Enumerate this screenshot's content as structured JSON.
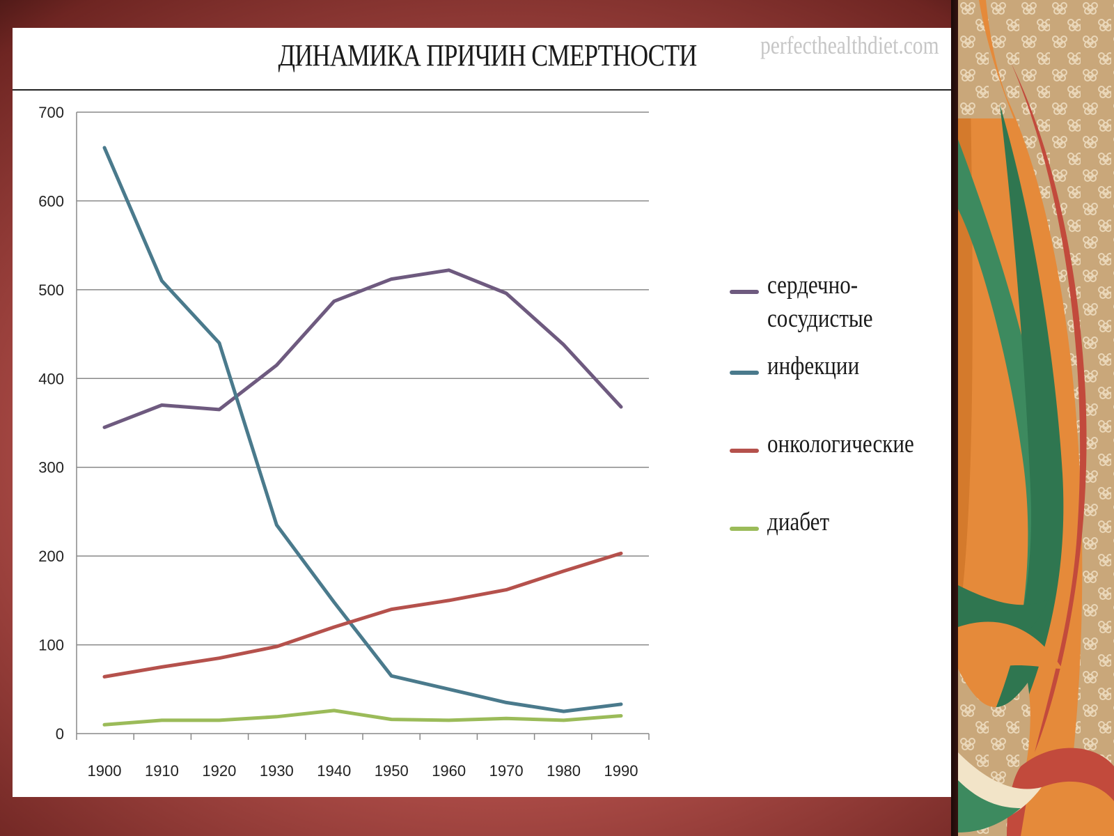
{
  "slide": {
    "title": "ДИНАМИКА ПРИЧИН СМЕРТНОСТИ",
    "watermark": "perfecthealthdiet.com"
  },
  "colors": {
    "background_frame": "#b5514c",
    "card": "#ffffff",
    "grid": "#888888",
    "right_panel_orange": "#e58a3a",
    "right_panel_green": "#3d8a5f",
    "right_panel_beige": "#c9a77a"
  },
  "chart_data": {
    "type": "line",
    "title": "ДИНАМИКА ПРИЧИН СМЕРТНОСТИ",
    "xlabel": "",
    "ylabel": "",
    "x": [
      1900,
      1910,
      1920,
      1930,
      1940,
      1950,
      1960,
      1970,
      1980,
      1990
    ],
    "x_tick_labels": [
      "1900",
      "1910",
      "1920",
      "1930",
      "1940",
      "1950",
      "1960",
      "1970",
      "1980",
      "1990"
    ],
    "y_ticks": [
      0,
      100,
      200,
      300,
      400,
      500,
      600,
      700
    ],
    "y_tick_labels": [
      "0",
      "100",
      "200",
      "300",
      "400",
      "500",
      "600",
      "700"
    ],
    "ylim": [
      0,
      700
    ],
    "grid": true,
    "legend_position": "right",
    "series": [
      {
        "name": "сердечно-сосудистые",
        "legend_lines": [
          "сердечно-",
          "сосудистые"
        ],
        "color": "#6e5a7f",
        "values": [
          345,
          370,
          365,
          415,
          487,
          512,
          522,
          496,
          438,
          368
        ]
      },
      {
        "name": "инфекции",
        "legend_lines": [
          "инфекции"
        ],
        "color": "#4a7a8c",
        "values": [
          660,
          510,
          440,
          235,
          148,
          65,
          50,
          35,
          25,
          33
        ]
      },
      {
        "name": "онкологические",
        "legend_lines": [
          "онкологические"
        ],
        "color": "#b5514c",
        "values": [
          64,
          75,
          85,
          98,
          120,
          140,
          150,
          162,
          183,
          203
        ]
      },
      {
        "name": "диабет",
        "legend_lines": [
          "диабет"
        ],
        "color": "#9bbb59",
        "values": [
          10,
          15,
          15,
          19,
          26,
          16,
          15,
          17,
          15,
          20
        ]
      }
    ]
  }
}
